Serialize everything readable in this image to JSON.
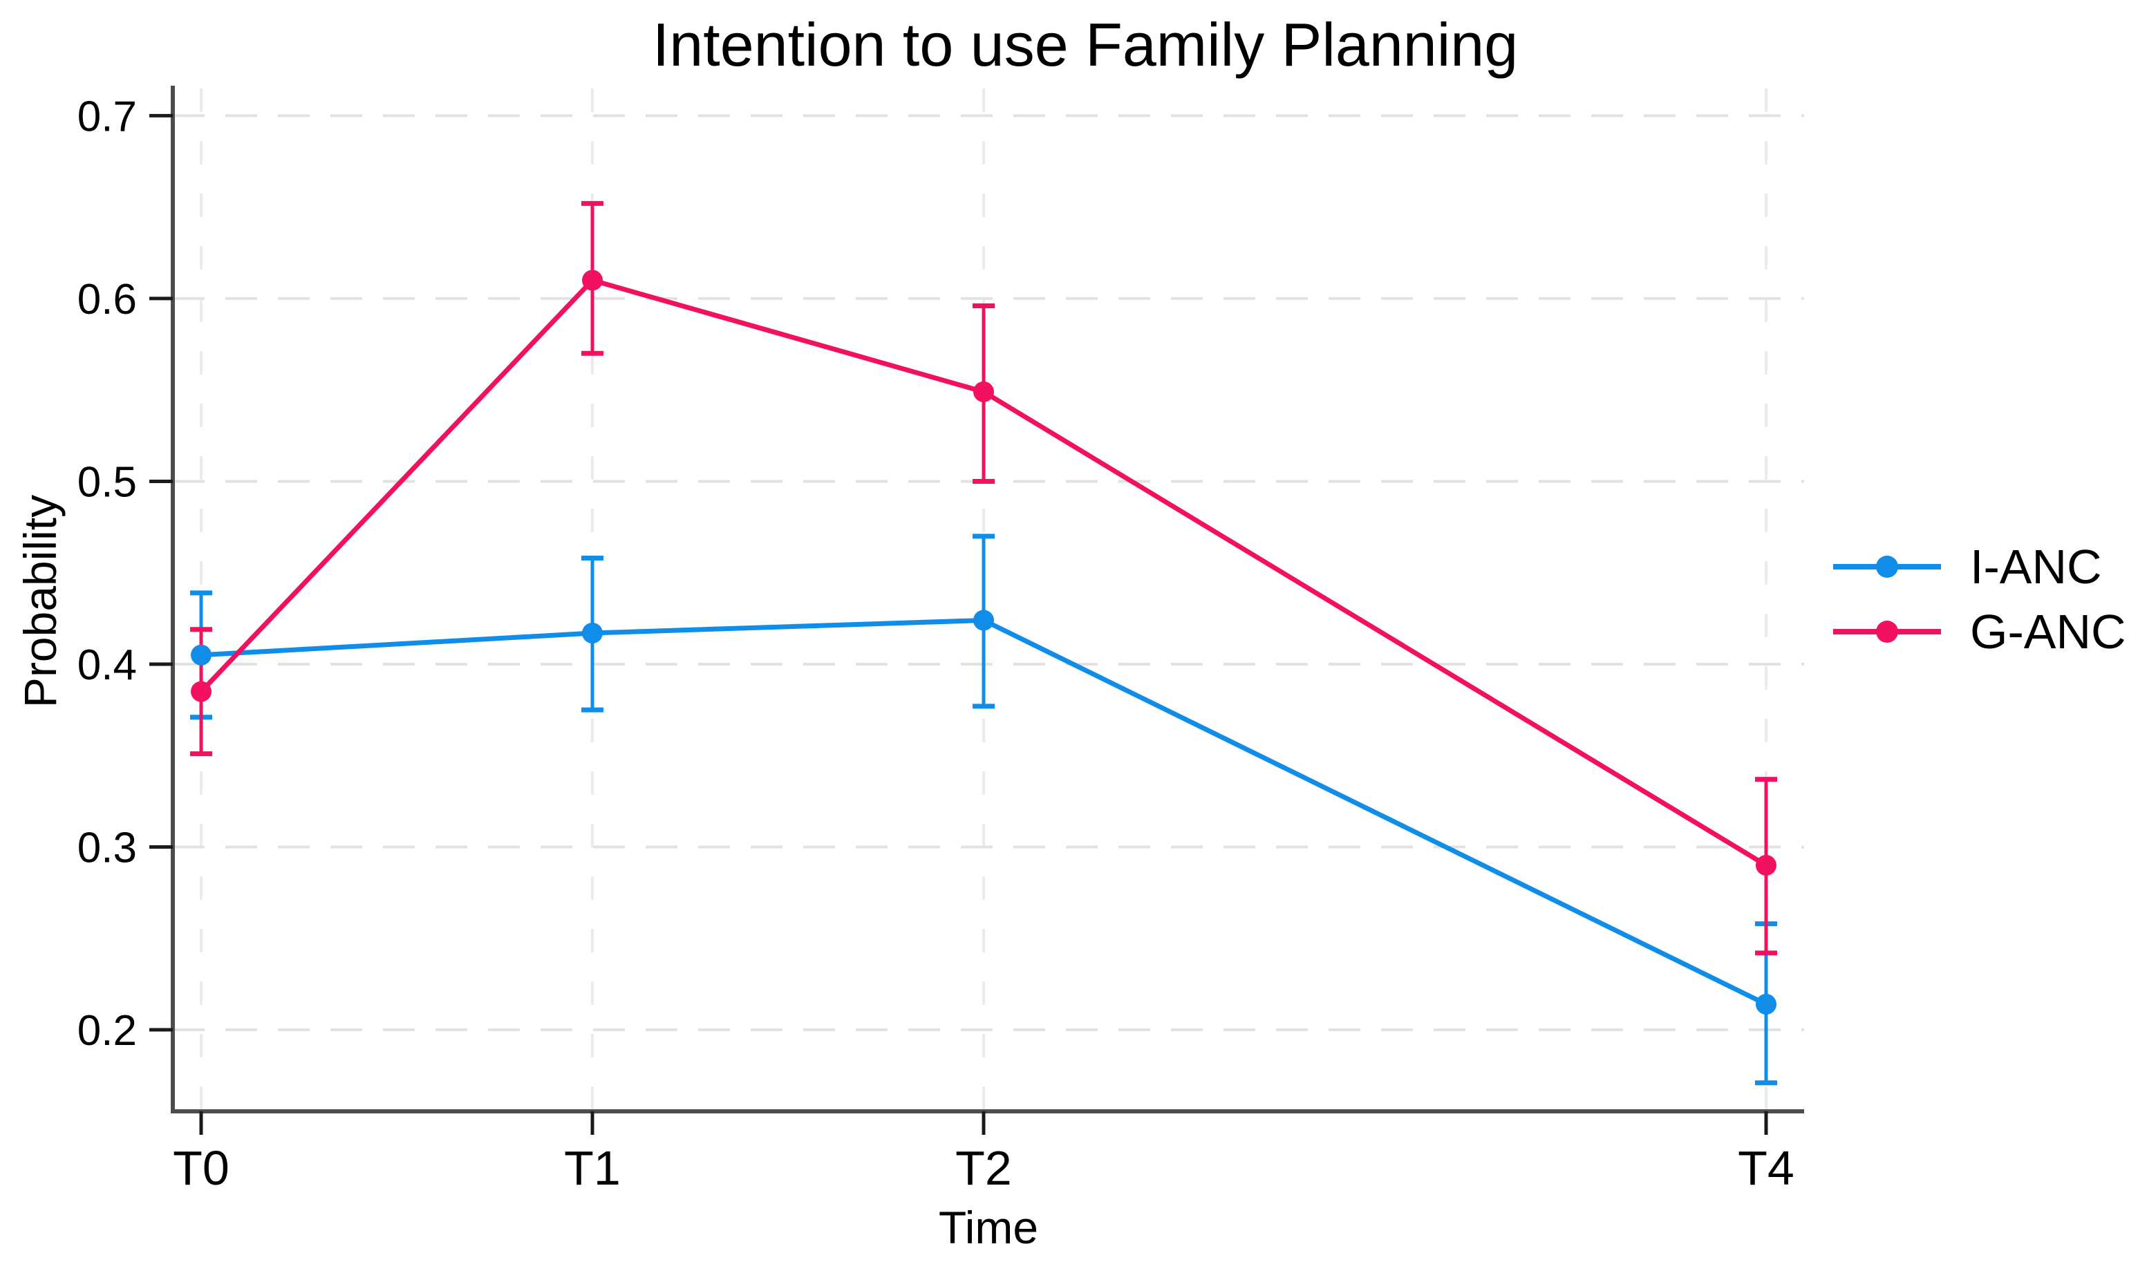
{
  "title": "Intention to use Family Planning",
  "chart_data": {
    "type": "line",
    "title": "Intention to use Family Planning",
    "xlabel": "Time",
    "ylabel": "Probability",
    "categories": [
      "T0",
      "T1",
      "T2",
      "T4"
    ],
    "x_numeric": [
      0,
      1,
      2,
      4
    ],
    "y_ticks": [
      0.2,
      0.3,
      0.4,
      0.5,
      0.6,
      0.7
    ],
    "y_tick_labels": [
      "0.2",
      "0.3",
      "0.4",
      "0.5",
      "0.6",
      "0.7"
    ],
    "ylim": [
      0.1554,
      0.7149
    ],
    "grid": true,
    "grid_style": "dashed",
    "legend_position": "right-outside",
    "error_bars": "95% CI",
    "series": [
      {
        "name": "I-ANC",
        "color": "#0F8DE8",
        "values": [
          0.405,
          0.417,
          0.424,
          0.214
        ],
        "ci_low": [
          0.371,
          0.375,
          0.377,
          0.171
        ],
        "ci_high": [
          0.439,
          0.458,
          0.47,
          0.258
        ]
      },
      {
        "name": "G-ANC",
        "color": "#F11160",
        "values": [
          0.385,
          0.61,
          0.549,
          0.29
        ],
        "ci_low": [
          0.351,
          0.57,
          0.5,
          0.242
        ],
        "ci_high": [
          0.419,
          0.652,
          0.596,
          0.337
        ]
      }
    ]
  }
}
